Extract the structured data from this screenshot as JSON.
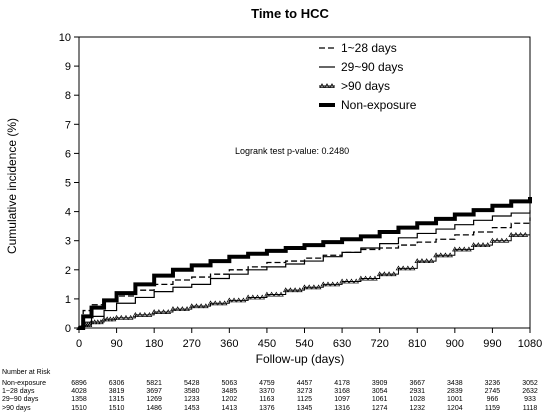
{
  "chart_data": {
    "type": "line",
    "title": "Time to HCC",
    "xlabel": "Follow-up  (days)",
    "ylabel": "Cumulative incidence (%)",
    "xlim": [
      0,
      1080
    ],
    "ylim": [
      0,
      10
    ],
    "xticks": [
      "0",
      "90",
      "180",
      "270",
      "360",
      "450",
      "540",
      "630",
      "720",
      "810",
      "900",
      "990",
      "1080"
    ],
    "yticks": [
      "0",
      "1",
      "2",
      "3",
      "4",
      "5",
      "6",
      "7",
      "8",
      "9",
      "10"
    ],
    "annotation": "Logrank test p-value: 0.2480",
    "legend_position": "top-right",
    "series": [
      {
        "name": "1~28 days",
        "style": "dashed",
        "color": "#000000",
        "x": [
          0,
          10,
          30,
          60,
          90,
          135,
          180,
          225,
          270,
          315,
          360,
          405,
          450,
          495,
          540,
          585,
          630,
          675,
          720,
          765,
          810,
          855,
          900,
          945,
          990,
          1035,
          1080
        ],
        "y": [
          0,
          0.6,
          0.8,
          0.95,
          1.1,
          1.3,
          1.5,
          1.65,
          1.75,
          1.85,
          2.0,
          2.1,
          2.25,
          2.3,
          2.4,
          2.5,
          2.6,
          2.7,
          2.75,
          2.85,
          2.95,
          3.05,
          3.2,
          3.3,
          3.45,
          3.6,
          3.8
        ]
      },
      {
        "name": "29~90 days",
        "style": "solid",
        "color": "#000000",
        "x": [
          0,
          10,
          30,
          60,
          90,
          135,
          180,
          225,
          270,
          315,
          360,
          405,
          450,
          495,
          540,
          585,
          630,
          675,
          720,
          765,
          810,
          855,
          900,
          945,
          990,
          1035,
          1080
        ],
        "y": [
          0,
          0.2,
          0.4,
          0.6,
          0.85,
          1.05,
          1.25,
          1.4,
          1.5,
          1.7,
          1.85,
          2.0,
          2.1,
          2.2,
          2.3,
          2.45,
          2.6,
          2.75,
          2.9,
          3.1,
          3.25,
          3.4,
          3.55,
          3.7,
          3.85,
          3.95,
          4.05
        ]
      },
      {
        "name": ">90 days",
        "style": "triangles",
        "color": "#000000",
        "x": [
          0,
          10,
          30,
          60,
          90,
          135,
          180,
          225,
          270,
          315,
          360,
          405,
          450,
          495,
          540,
          585,
          630,
          675,
          720,
          765,
          810,
          855,
          900,
          945,
          990,
          1035,
          1080
        ],
        "y": [
          0,
          0.1,
          0.2,
          0.3,
          0.35,
          0.45,
          0.55,
          0.65,
          0.75,
          0.85,
          0.95,
          1.05,
          1.15,
          1.3,
          1.4,
          1.5,
          1.6,
          1.7,
          1.85,
          2.05,
          2.3,
          2.5,
          2.7,
          2.85,
          3.0,
          3.2,
          3.35
        ]
      },
      {
        "name": "Non-exposure",
        "style": "thick",
        "color": "#000000",
        "x": [
          0,
          10,
          30,
          60,
          90,
          135,
          180,
          225,
          270,
          315,
          360,
          405,
          450,
          495,
          540,
          585,
          630,
          675,
          720,
          765,
          810,
          855,
          900,
          945,
          990,
          1035,
          1080
        ],
        "y": [
          0,
          0.4,
          0.7,
          0.95,
          1.2,
          1.5,
          1.8,
          2.0,
          2.15,
          2.3,
          2.45,
          2.55,
          2.65,
          2.75,
          2.85,
          2.95,
          3.05,
          3.15,
          3.3,
          3.45,
          3.6,
          3.75,
          3.9,
          4.05,
          4.2,
          4.35,
          4.5
        ]
      }
    ]
  },
  "risk_table": {
    "title": "Number at Risk",
    "rows": [
      {
        "label": "Non-exposure",
        "values": [
          "6896",
          "6306",
          "5821",
          "5428",
          "5063",
          "4759",
          "4457",
          "4178",
          "3909",
          "3667",
          "3438",
          "3236",
          "3052"
        ]
      },
      {
        "label": "1~28 days",
        "values": [
          "4028",
          "3819",
          "3697",
          "3580",
          "3485",
          "3370",
          "3273",
          "3168",
          "3054",
          "2931",
          "2839",
          "2745",
          "2632"
        ]
      },
      {
        "label": "29~90 days",
        "values": [
          "1358",
          "1315",
          "1269",
          "1233",
          "1202",
          "1163",
          "1125",
          "1097",
          "1061",
          "1028",
          "1001",
          "966",
          "933"
        ]
      },
      {
        "label": ">90 days",
        "values": [
          "1510",
          "1510",
          "1486",
          "1453",
          "1413",
          "1376",
          "1345",
          "1316",
          "1274",
          "1232",
          "1204",
          "1159",
          "1118"
        ]
      }
    ]
  }
}
